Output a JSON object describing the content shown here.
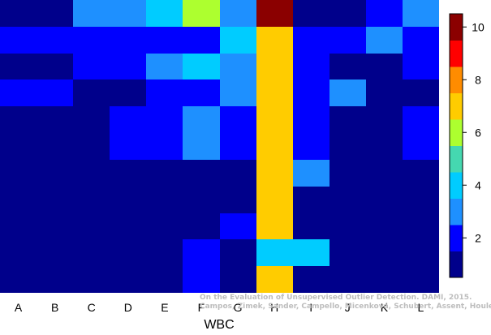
{
  "chart_data": {
    "type": "heatmap",
    "title": "",
    "xlabel": "WBC",
    "ylabel": "",
    "columns": [
      "A",
      "B",
      "C",
      "D",
      "E",
      "F",
      "G",
      "H",
      "I",
      "J",
      "K",
      "L"
    ],
    "matrix": [
      [
        1,
        1,
        3,
        3,
        4,
        6,
        3,
        10,
        1,
        1,
        2,
        3
      ],
      [
        2,
        2,
        2,
        2,
        2,
        2,
        4,
        7,
        2,
        2,
        3,
        2
      ],
      [
        1,
        1,
        2,
        2,
        3,
        4,
        3,
        7,
        2,
        1,
        1,
        2
      ],
      [
        2,
        2,
        1,
        1,
        2,
        2,
        3,
        7,
        2,
        3,
        1,
        1
      ],
      [
        1,
        1,
        1,
        2,
        2,
        3,
        2,
        7,
        2,
        1,
        1,
        2
      ],
      [
        1,
        1,
        1,
        2,
        2,
        3,
        2,
        7,
        2,
        1,
        1,
        2
      ],
      [
        1,
        1,
        1,
        1,
        1,
        1,
        1,
        7,
        3,
        1,
        1,
        1
      ],
      [
        1,
        1,
        1,
        1,
        1,
        1,
        1,
        7,
        1,
        1,
        1,
        1
      ],
      [
        1,
        1,
        1,
        1,
        1,
        1,
        2,
        7,
        1,
        1,
        1,
        1
      ],
      [
        1,
        1,
        1,
        1,
        1,
        2,
        1,
        4,
        4,
        1,
        1,
        1
      ],
      [
        1,
        1,
        1,
        1,
        1,
        2,
        1,
        7,
        1,
        1,
        1,
        1
      ]
    ],
    "color_scale": {
      "min": 0.5,
      "max": 10.5,
      "colors": [
        "#00008B",
        "#0000FF",
        "#1E90FF",
        "#00CCFF",
        "#45D8B0",
        "#ADFF2F",
        "#FFCC00",
        "#FF8C00",
        "#FF0000",
        "#8B0000"
      ],
      "ticks": [
        2,
        4,
        6,
        8,
        10
      ]
    },
    "grid": false,
    "legend": "colorbar-right"
  },
  "watermark": {
    "line1": "On the Evaluation of Unsupervised Outlier Detection. DAMI, 2015.",
    "line2": "Campos, Zimek, Sander, Campello, Micenková, Schubert, Assent, Houle"
  }
}
